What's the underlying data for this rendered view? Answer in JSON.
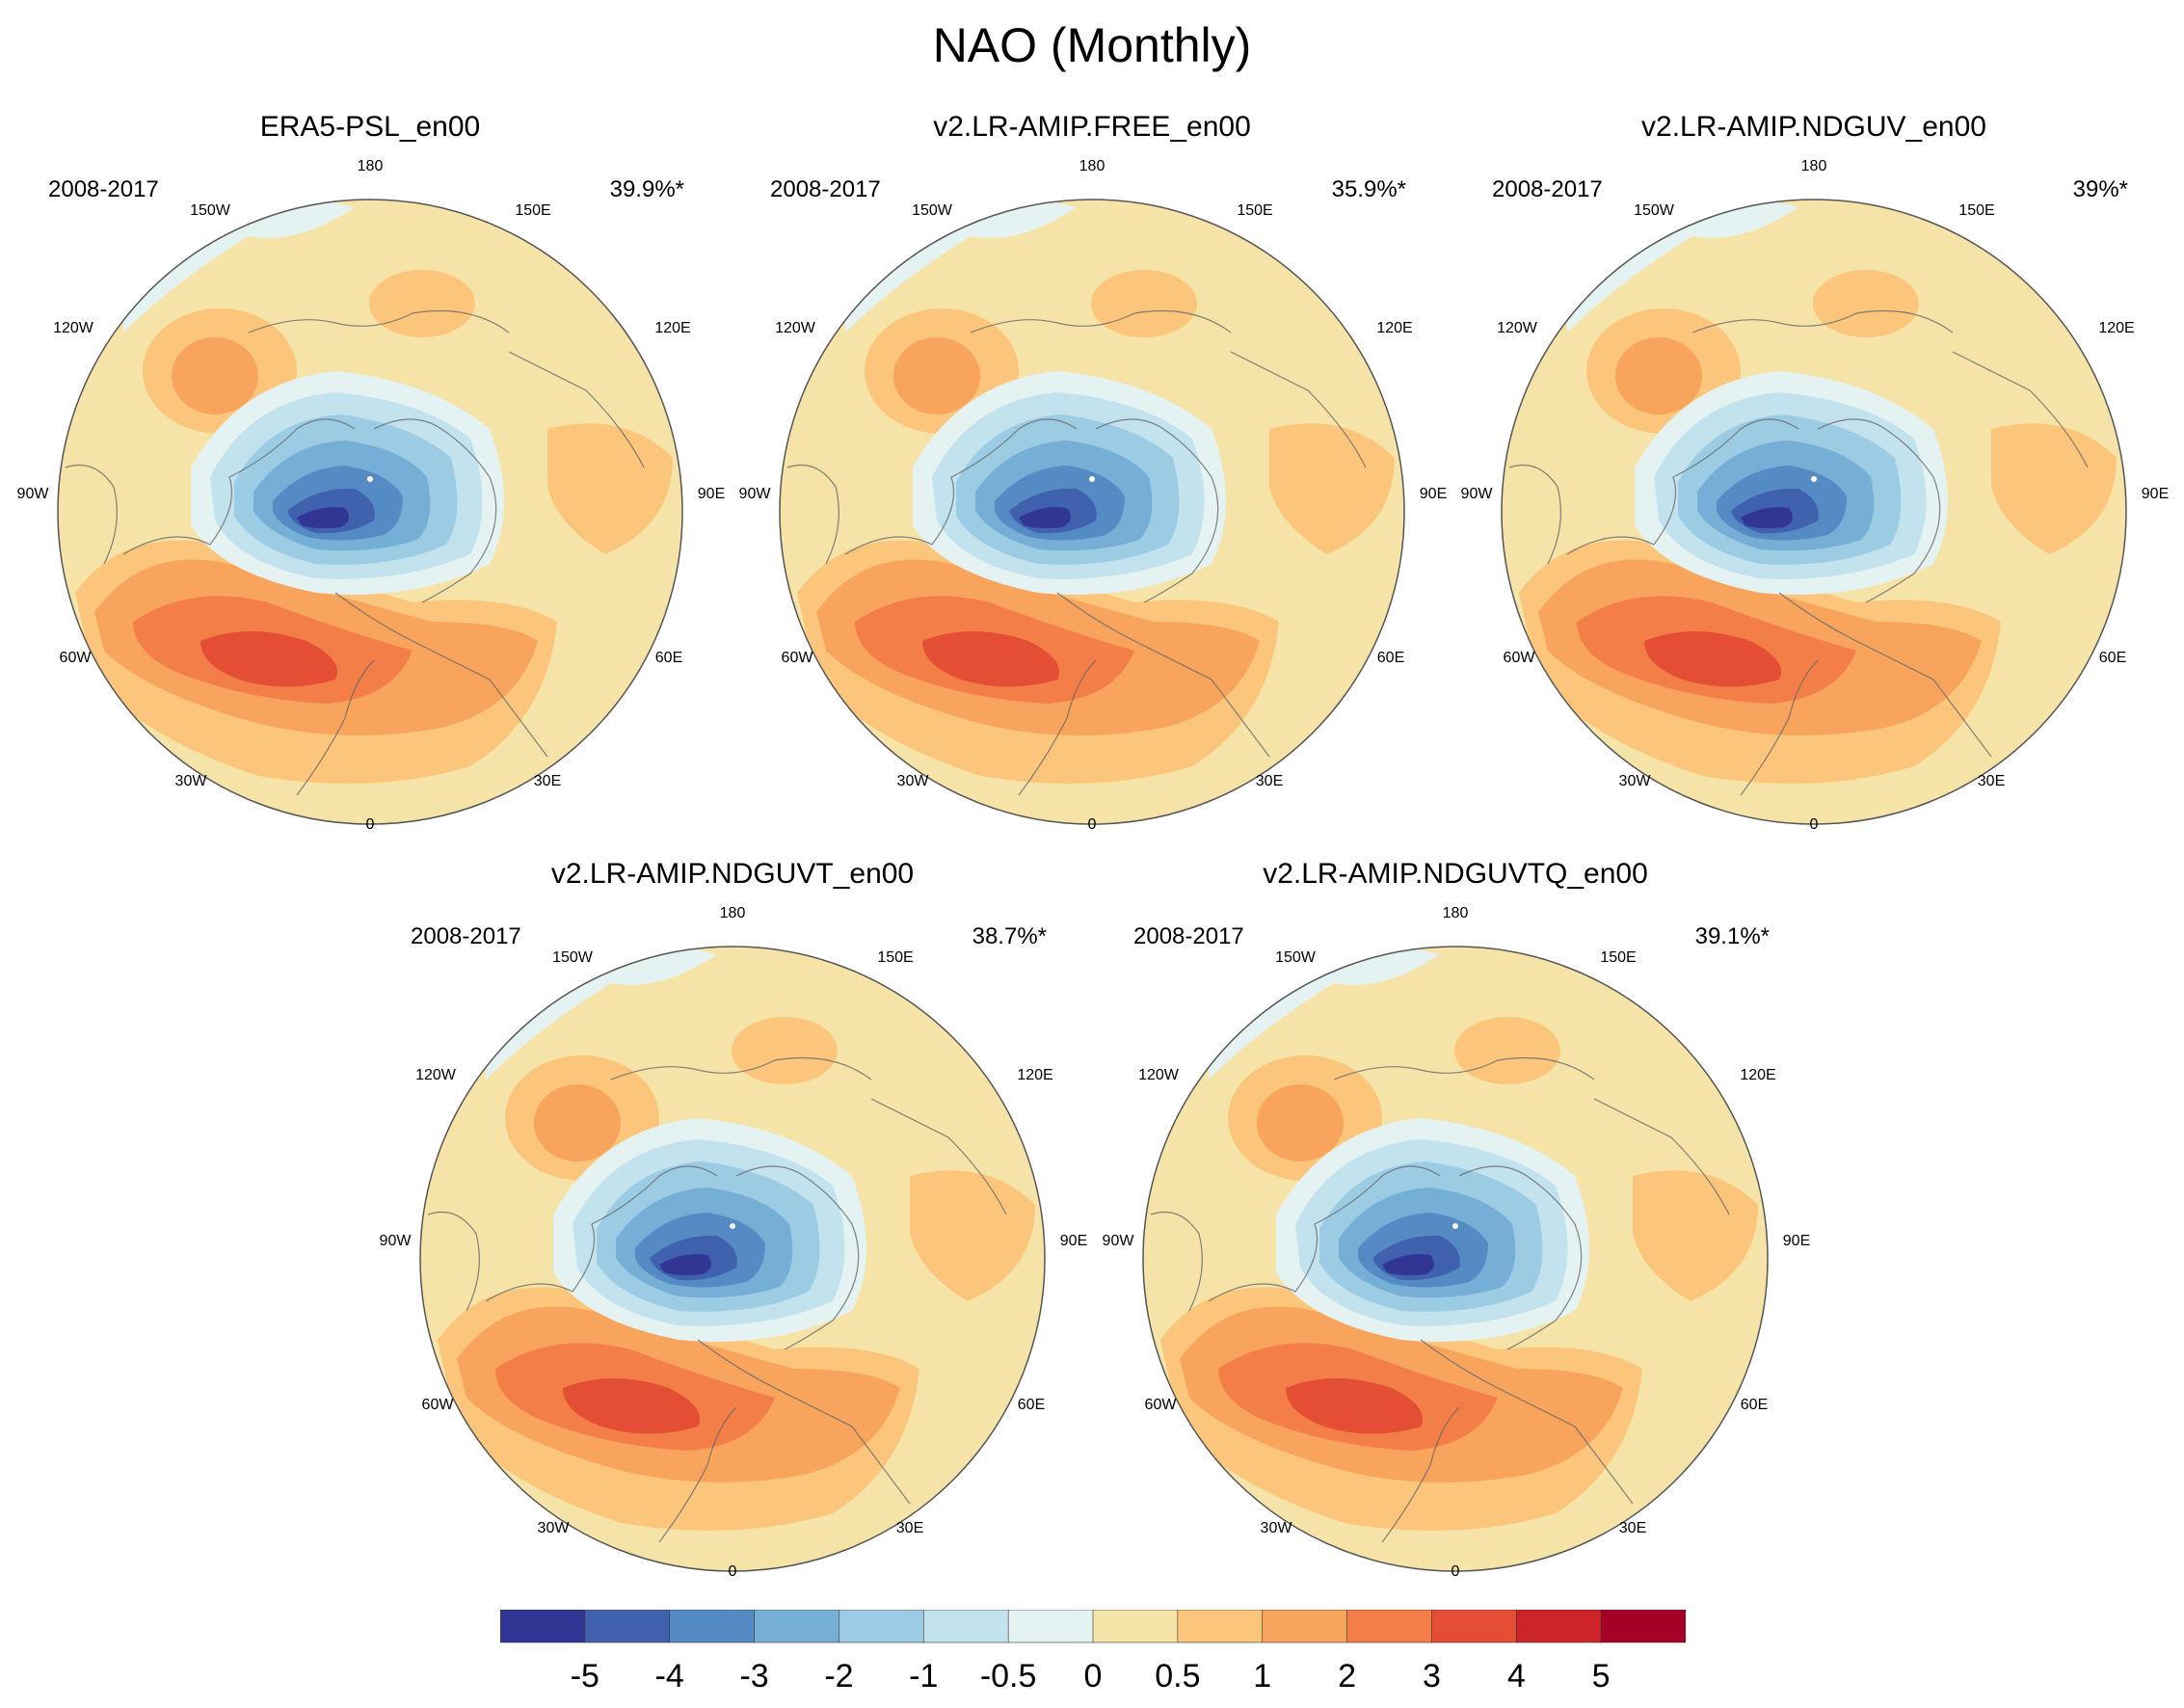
{
  "figure": {
    "title": "NAO (Monthly)"
  },
  "colors": {
    "levels": [
      "#313695",
      "#4061ad",
      "#548bc4",
      "#76afd6",
      "#9cccE4",
      "#c2e2ee",
      "#e4f2f2",
      "#f6e3a8",
      "#fbc67b",
      "#f8a45c",
      "#f47e47",
      "#e44e34",
      "#cc2427",
      "#a50026"
    ]
  },
  "panels": [
    {
      "title": "ERA5-PSL_en00",
      "period": "2008-2017",
      "pct": "39.9%*"
    },
    {
      "title": "v2.LR-AMIP.FREE_en00",
      "period": "2008-2017",
      "pct": "35.9%*"
    },
    {
      "title": "v2.LR-AMIP.NDGUV_en00",
      "period": "2008-2017",
      "pct": "39%*"
    },
    {
      "title": "v2.LR-AMIP.NDGUVT_en00",
      "period": "2008-2017",
      "pct": "38.7%*"
    },
    {
      "title": "v2.LR-AMIP.NDGUVTQ_en00",
      "period": "2008-2017",
      "pct": "39.1%*"
    }
  ],
  "lon_labels": {
    "l180": "180",
    "l150w": "150W",
    "l150e": "150E",
    "l120w": "120W",
    "l120e": "120E",
    "l90w": "90W",
    "l90e": "90E",
    "l60w": "60W",
    "l60e": "60E",
    "l30w": "30W",
    "l30e": "30E",
    "l0": "0"
  },
  "colorbar": {
    "ticks": [
      "-5",
      "-4",
      "-3",
      "-2",
      "-1",
      "-0.5",
      "0",
      "0.5",
      "1",
      "2",
      "3",
      "4",
      "5"
    ]
  }
}
